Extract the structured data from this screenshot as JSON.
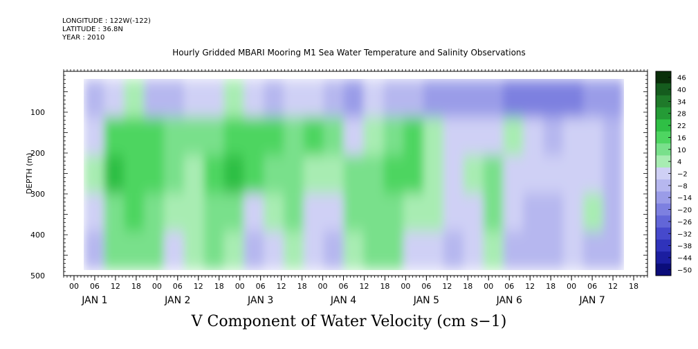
{
  "header": {
    "longitude": "LONGITUDE : 122W(-122)",
    "latitude": "LATITUDE : 36.8N",
    "year": "YEAR : 2010"
  },
  "chart_data": {
    "type": "heatmap",
    "title": "Hourly Gridded MBARI Mooring M1 Sea Water Temperature and Salinity Observations",
    "xlabel": "",
    "ylabel": "DEPTH (m)",
    "footer": "V Component of Water Velocity (cm s−1)",
    "ylim": [
      500,
      0
    ],
    "xlim": [
      -3,
      166
    ],
    "data_x_range": [
      3,
      159
    ],
    "data_y_range": [
      20,
      485
    ],
    "y_ticks": [
      100,
      200,
      300,
      400,
      500
    ],
    "x_tick_labels": [
      "00",
      "06",
      "12",
      "18",
      "00",
      "06",
      "12",
      "18",
      "00",
      "06",
      "12",
      "18",
      "00",
      "06",
      "12",
      "18",
      "00",
      "06",
      "12",
      "18",
      "00",
      "06",
      "12",
      "18",
      "00",
      "06",
      "12",
      "18"
    ],
    "x_tick_hours": [
      0,
      6,
      12,
      18,
      24,
      30,
      36,
      42,
      48,
      54,
      60,
      66,
      72,
      78,
      84,
      90,
      96,
      102,
      108,
      114,
      120,
      126,
      132,
      138,
      144,
      150,
      156,
      162
    ],
    "day_labels": [
      "JAN  1",
      "JAN  2",
      "JAN  3",
      "JAN  4",
      "JAN  5",
      "JAN  6",
      "JAN  7"
    ],
    "day_label_hours": [
      6,
      30,
      54,
      78,
      102,
      126,
      150
    ],
    "colorbar": {
      "levels": [
        46,
        40,
        34,
        28,
        22,
        16,
        10,
        4,
        -2,
        -8,
        -14,
        -20,
        -26,
        -32,
        -38,
        -44,
        -50
      ]
    },
    "approx_profile": {
      "hours": [
        3,
        9,
        15,
        21,
        27,
        33,
        39,
        45,
        51,
        57,
        63,
        69,
        75,
        81,
        87,
        93,
        99,
        105,
        111,
        117,
        123,
        129,
        135,
        141,
        147,
        153,
        159
      ],
      "depths": [
        50,
        150,
        250,
        350,
        450
      ],
      "values": [
        [
          -14,
          -8,
          -2,
          -10,
          -14,
          -8,
          -6,
          -2,
          -8,
          -12,
          -8,
          -6,
          -12,
          -18,
          -8,
          -12,
          -10,
          -16,
          -20,
          -16,
          -18,
          -24,
          -26,
          -22,
          -24,
          -20,
          -18
        ],
        [
          -6,
          10,
          12,
          14,
          8,
          4,
          6,
          12,
          14,
          10,
          8,
          10,
          6,
          -4,
          -2,
          4,
          10,
          -2,
          -6,
          -8,
          -4,
          -2,
          -6,
          -10,
          -8,
          -4,
          -10
        ],
        [
          -2,
          16,
          14,
          12,
          6,
          2,
          12,
          16,
          10,
          8,
          4,
          2,
          -2,
          6,
          8,
          12,
          10,
          2,
          -4,
          -2,
          6,
          -6,
          -4,
          -8,
          -6,
          -4,
          -12
        ],
        [
          -8,
          4,
          10,
          6,
          -2,
          0,
          8,
          4,
          -4,
          0,
          4,
          -6,
          -6,
          4,
          8,
          6,
          2,
          -2,
          -8,
          -6,
          4,
          -8,
          -10,
          -10,
          -4,
          -2,
          -10
        ],
        [
          -10,
          6,
          8,
          4,
          -6,
          -2,
          4,
          2,
          -10,
          -6,
          2,
          -8,
          -10,
          2,
          6,
          4,
          -4,
          -8,
          -12,
          -8,
          2,
          -10,
          -12,
          -12,
          -6,
          -10,
          -12
        ]
      ]
    }
  },
  "colors": {
    "colorbar": [
      "#0a2f0a",
      "#155c1e",
      "#1f7a2a",
      "#249b36",
      "#2fbf45",
      "#4ed561",
      "#79e08b",
      "#a8ecb2",
      "#cfd0f5",
      "#b6b7ef",
      "#9a9ce8",
      "#7d80e0",
      "#6266d8",
      "#4649cc",
      "#2f33bb",
      "#1b1ea0",
      "#0b0d7a"
    ]
  }
}
